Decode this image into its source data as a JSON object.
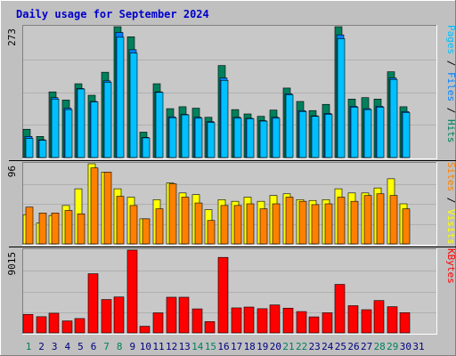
{
  "title": "Daily usage for September 2024",
  "colors": {
    "background": "#c0c0c0",
    "plot_background": "#c8c8c8",
    "hits": "#00805c",
    "files": "#0080ff",
    "pages": "#00c0ff",
    "visits": "#ffff00",
    "sites": "#ff8000",
    "kbytes": "#ff0000",
    "title": "#0000cc",
    "weekend_day": "#00805c",
    "weekday": "#000080",
    "separator": "#000000"
  },
  "chart_data": {
    "type": "bar",
    "categories": [
      "1",
      "2",
      "3",
      "4",
      "5",
      "6",
      "7",
      "8",
      "9",
      "10",
      "11",
      "12",
      "13",
      "14",
      "15",
      "16",
      "17",
      "18",
      "19",
      "20",
      "21",
      "22",
      "23",
      "24",
      "25",
      "26",
      "27",
      "28",
      "29",
      "30",
      "31"
    ],
    "weekend_days": [
      "1",
      "7",
      "8",
      "14",
      "15",
      "21",
      "22",
      "28",
      "29"
    ],
    "panels": [
      {
        "id": "hits",
        "ymax_label": "273",
        "ymax": 273,
        "side_label": [
          "Pages",
          " / ",
          "Files",
          " / ",
          "Hits"
        ],
        "side_label_colors": [
          "#00c0ff",
          "#000000",
          "#0080ff",
          "#000000",
          "#00805c"
        ],
        "series": [
          {
            "name": "Hits",
            "color": "#00805c",
            "values": [
              59,
              44,
              137,
              120,
              154,
              130,
              178,
              273,
              252,
              53,
              154,
              102,
              106,
              103,
              84,
              192,
              100,
              91,
              86,
              99,
              145,
              117,
              98,
              111,
              273,
              122,
              125,
              122,
              179,
              106,
              0
            ]
          },
          {
            "name": "Files",
            "color": "#0080ff",
            "values": [
              44,
              37,
              125,
              103,
              144,
              117,
              160,
              261,
              225,
              42,
              137,
              85,
              90,
              84,
              75,
              166,
              84,
              82,
              77,
              84,
              133,
              98,
              87,
              92,
              256,
              107,
              102,
              107,
              166,
              96,
              0
            ]
          },
          {
            "name": "Pages",
            "color": "#00c0ff",
            "values": [
              40,
              36,
              122,
              100,
              143,
              116,
              157,
              251,
              218,
              41,
              136,
              83,
              89,
              82,
              73,
              161,
              82,
              81,
              76,
              82,
              131,
              96,
              86,
              90,
              248,
              105,
              100,
              105,
              163,
              94,
              0
            ]
          }
        ]
      },
      {
        "id": "visits",
        "ymax_label": "96",
        "ymax": 96,
        "side_label": [
          "Sites",
          " / ",
          "Visits"
        ],
        "side_label_colors": [
          "#ff8000",
          "#000000",
          "#ffff00"
        ],
        "series": [
          {
            "name": "Visits",
            "color": "#ffff00",
            "values": [
              35,
              25,
              34,
              46,
              66,
              96,
              86,
              66,
              56,
              30,
              53,
              73,
              61,
              59,
              41,
              53,
              51,
              56,
              51,
              58,
              60,
              53,
              52,
              53,
              66,
              61,
              61,
              67,
              78,
              48,
              0
            ]
          },
          {
            "name": "Sites",
            "color": "#ff8000",
            "values": [
              44,
              37,
              37,
              40,
              36,
              91,
              86,
              57,
              46,
              30,
              42,
              72,
              56,
              49,
              28,
              46,
              46,
              48,
              42,
              48,
              56,
              51,
              47,
              48,
              56,
              51,
              58,
              60,
              58,
              42,
              0
            ]
          }
        ]
      },
      {
        "id": "kbytes",
        "ymax_label": "9015",
        "ymax": 9015,
        "side_label": [
          "KBytes"
        ],
        "side_label_colors": [
          "#ff0000"
        ],
        "series": [
          {
            "name": "KBytes",
            "color": "#ff0000",
            "values": [
              2010,
              1760,
              2140,
              1300,
              1560,
              6440,
              3630,
              3910,
              9015,
              720,
              2180,
              3880,
              3880,
              2610,
              1230,
              8220,
              2720,
              2810,
              2630,
              3040,
              2690,
              2320,
              1740,
              2190,
              5280,
              2960,
              2520,
              3520,
              2850,
              2200,
              0
            ]
          }
        ]
      }
    ]
  }
}
